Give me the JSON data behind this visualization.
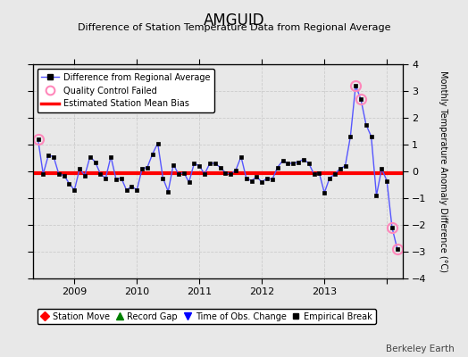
{
  "title": "AMGUID",
  "subtitle": "Difference of Station Temperature Data from Regional Average",
  "ylabel_right": "Monthly Temperature Anomaly Difference (°C)",
  "watermark": "Berkeley Earth",
  "bias": -0.05,
  "ylim": [
    -4,
    4
  ],
  "background_color": "#e8e8e8",
  "plot_bg_color": "#e8e8e8",
  "grid_color": "#d0d0d0",
  "line_color": "#5555ff",
  "bias_color": "#ff0000",
  "marker_color": "#000000",
  "qc_color": "#ff88bb",
  "data_values": [
    1.2,
    -0.1,
    0.6,
    0.55,
    -0.1,
    -0.15,
    -0.45,
    -0.7,
    0.1,
    -0.15,
    0.55,
    0.35,
    -0.1,
    -0.25,
    0.55,
    -0.3,
    -0.25,
    -0.7,
    -0.55,
    -0.7,
    0.1,
    0.15,
    0.65,
    1.05,
    -0.25,
    -0.75,
    0.25,
    -0.1,
    -0.05,
    -0.4,
    0.3,
    0.2,
    -0.1,
    0.3,
    0.3,
    0.15,
    -0.05,
    -0.1,
    0.05,
    0.55,
    -0.25,
    -0.35,
    -0.2,
    -0.4,
    -0.25,
    -0.3,
    0.15,
    0.4,
    0.3,
    0.3,
    0.35,
    0.45,
    0.3,
    -0.1,
    -0.05,
    -0.8,
    -0.25,
    -0.1,
    0.1,
    0.2,
    1.3,
    3.2,
    2.7,
    1.75,
    1.3,
    -0.9,
    0.1,
    -0.35,
    -2.1,
    -2.9
  ],
  "qc_failed_indices": [
    0,
    61,
    62,
    68,
    69
  ],
  "x_tick_positions": [
    7,
    19,
    31,
    43,
    55,
    67
  ],
  "x_tick_labels": [
    "2009",
    "2010",
    "2011",
    "2012",
    "2013",
    ""
  ],
  "yticks": [
    -4,
    -3,
    -2,
    -1,
    0,
    1,
    2,
    3,
    4
  ]
}
